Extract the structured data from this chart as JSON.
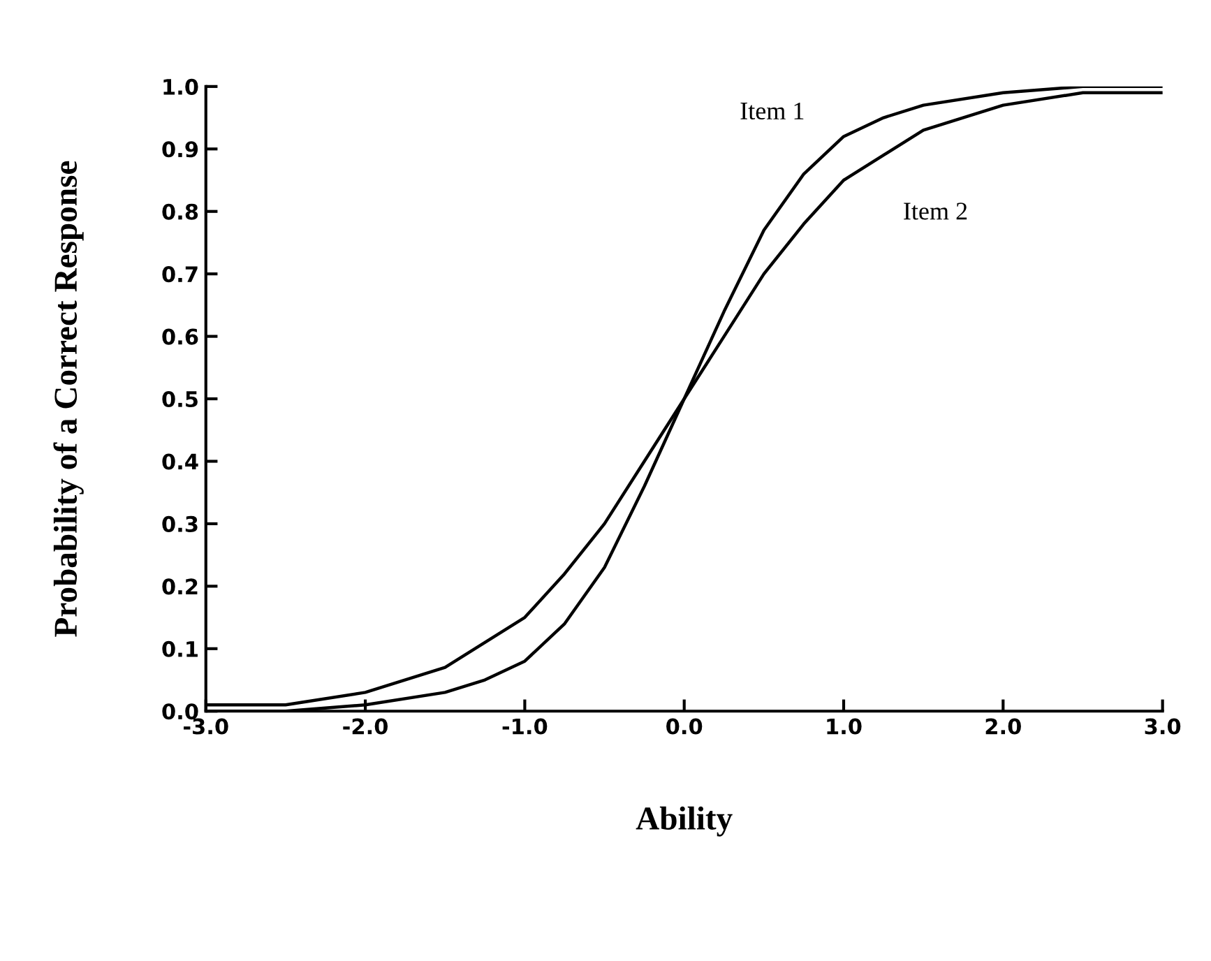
{
  "chart_data": {
    "type": "line",
    "xlabel": "Ability",
    "ylabel": "Probability of a Correct Response",
    "x": [
      -3,
      -2.5,
      -2,
      -1.5,
      -1.25,
      -1,
      -0.75,
      -0.5,
      -0.25,
      0,
      0.25,
      0.5,
      0.75,
      1,
      1.25,
      1.5,
      2,
      2.5,
      3
    ],
    "series": [
      {
        "name": "Item 1",
        "color": "#000000",
        "values": [
          0.0,
          0.0,
          0.01,
          0.03,
          0.05,
          0.08,
          0.14,
          0.23,
          0.36,
          0.5,
          0.64,
          0.77,
          0.86,
          0.92,
          0.95,
          0.97,
          0.99,
          1.0,
          1.0
        ]
      },
      {
        "name": "Item 2",
        "color": "#000000",
        "values": [
          0.01,
          0.01,
          0.03,
          0.07,
          0.11,
          0.15,
          0.22,
          0.3,
          0.4,
          0.5,
          0.6,
          0.7,
          0.78,
          0.85,
          0.89,
          0.93,
          0.97,
          0.99,
          0.99
        ]
      }
    ],
    "xlim": [
      -3,
      3
    ],
    "ylim": [
      0,
      1
    ],
    "xticks": [
      {
        "value": -3,
        "label": "-3.0"
      },
      {
        "value": -2,
        "label": "-2.0"
      },
      {
        "value": -1,
        "label": "-1.0"
      },
      {
        "value": 0,
        "label": "0.0"
      },
      {
        "value": 1,
        "label": "1.0"
      },
      {
        "value": 2,
        "label": "2.0"
      },
      {
        "value": 3,
        "label": "3.0"
      }
    ],
    "yticks": [
      {
        "value": 0,
        "label": "0.0"
      },
      0.1,
      0.2,
      0.3,
      0.4,
      0.5,
      0.6,
      0.7,
      0.8,
      0.9,
      {
        "value": 1,
        "label": "1.0"
      }
    ],
    "grid": false,
    "legend": false,
    "marker": "none",
    "line_style": "solid"
  }
}
